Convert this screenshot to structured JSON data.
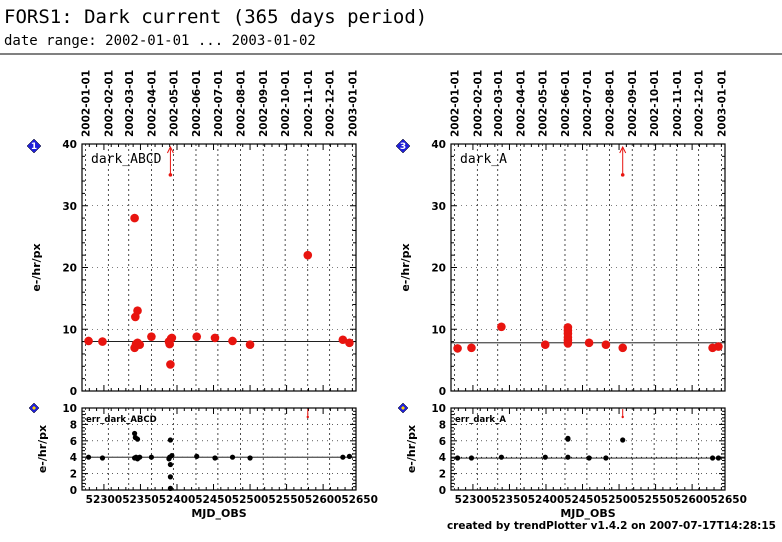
{
  "header": {
    "title": "FORS1: Dark current (365 days period)",
    "subtitle": "date range: 2002-01-01 ... 2003-01-02"
  },
  "footer": "created by trendPlotter v1.4.2 on 2007-07-17T14:28:15",
  "colors": {
    "points_main": "#e8140f",
    "points_err": "#000000",
    "badge": "#1f1fd8",
    "grid": "#000000"
  },
  "chart_data": [
    {
      "type": "scatter",
      "badge": "1",
      "name": "dark_ABCD",
      "ylabel": "e-/hr/px",
      "ylim": [
        0,
        40
      ],
      "yticks": [
        "0",
        "10",
        "20",
        "30",
        "40"
      ],
      "xlim": [
        52270,
        52645
      ],
      "reference_line": 8,
      "date_ticks": [
        {
          "label": "2002-01-01",
          "mjd": 52275
        },
        {
          "label": "2002-02-01",
          "mjd": 52306
        },
        {
          "label": "2002-03-01",
          "mjd": 52334
        },
        {
          "label": "2002-04-01",
          "mjd": 52365
        },
        {
          "label": "2002-05-01",
          "mjd": 52395
        },
        {
          "label": "2002-06-01",
          "mjd": 52426
        },
        {
          "label": "2002-07-01",
          "mjd": 52456
        },
        {
          "label": "2002-08-01",
          "mjd": 52487
        },
        {
          "label": "2002-09-01",
          "mjd": 52518
        },
        {
          "label": "2002-10-01",
          "mjd": 52548
        },
        {
          "label": "2002-11-01",
          "mjd": 52579
        },
        {
          "label": "2002-12-01",
          "mjd": 52609
        },
        {
          "label": "2003-01-01",
          "mjd": 52640
        }
      ],
      "outlier_arrows": [
        {
          "x": 52391,
          "y": 35
        }
      ],
      "points": [
        {
          "x": 52279,
          "y": 8.1
        },
        {
          "x": 52298,
          "y": 8.0
        },
        {
          "x": 52342,
          "y": 28.0
        },
        {
          "x": 52343,
          "y": 12.0
        },
        {
          "x": 52346,
          "y": 13.0
        },
        {
          "x": 52342,
          "y": 7.0
        },
        {
          "x": 52344,
          "y": 7.6
        },
        {
          "x": 52346,
          "y": 7.8
        },
        {
          "x": 52349,
          "y": 7.5
        },
        {
          "x": 52365,
          "y": 8.8
        },
        {
          "x": 52389,
          "y": 8.0
        },
        {
          "x": 52390,
          "y": 7.6
        },
        {
          "x": 52391,
          "y": 4.3
        },
        {
          "x": 52392,
          "y": 8.5
        },
        {
          "x": 52393,
          "y": 8.6
        },
        {
          "x": 52427,
          "y": 8.8
        },
        {
          "x": 52452,
          "y": 8.6
        },
        {
          "x": 52476,
          "y": 8.1
        },
        {
          "x": 52500,
          "y": 7.5
        },
        {
          "x": 52579,
          "y": 22.0
        },
        {
          "x": 52627,
          "y": 8.3
        },
        {
          "x": 52636,
          "y": 7.8
        }
      ]
    },
    {
      "type": "scatter",
      "badge": "",
      "name": "err_dark_ABCD",
      "ylabel": "e-/hr/px",
      "xlabel": "MJD_OBS",
      "ylim": [
        0,
        10
      ],
      "yticks": [
        "0",
        "2",
        "4",
        "6",
        "8",
        "10"
      ],
      "xlim": [
        52270,
        52645
      ],
      "xticks": [
        "52300",
        "52350",
        "52400",
        "52450",
        "52500",
        "52550",
        "52600",
        "52650"
      ],
      "reference_line": 4,
      "outlier_arrows": [
        {
          "x": 52579,
          "y": 9
        }
      ],
      "points": [
        {
          "x": 52279,
          "y": 4.0
        },
        {
          "x": 52298,
          "y": 3.9
        },
        {
          "x": 52342,
          "y": 6.9
        },
        {
          "x": 52343,
          "y": 6.4
        },
        {
          "x": 52346,
          "y": 6.2
        },
        {
          "x": 52342,
          "y": 3.9
        },
        {
          "x": 52344,
          "y": 4.0
        },
        {
          "x": 52346,
          "y": 3.8
        },
        {
          "x": 52349,
          "y": 4.0
        },
        {
          "x": 52365,
          "y": 4.0
        },
        {
          "x": 52389,
          "y": 3.8
        },
        {
          "x": 52390,
          "y": 4.0
        },
        {
          "x": 52391,
          "y": 6.1
        },
        {
          "x": 52391,
          "y": 3.1
        },
        {
          "x": 52391,
          "y": 1.6
        },
        {
          "x": 52391,
          "y": 0.2
        },
        {
          "x": 52393,
          "y": 4.2
        },
        {
          "x": 52427,
          "y": 4.1
        },
        {
          "x": 52452,
          "y": 3.9
        },
        {
          "x": 52476,
          "y": 4.0
        },
        {
          "x": 52500,
          "y": 3.9
        },
        {
          "x": 52627,
          "y": 4.0
        },
        {
          "x": 52636,
          "y": 4.1
        }
      ]
    },
    {
      "type": "scatter",
      "badge": "3",
      "name": "dark_A",
      "ylabel": "e-/hr/px",
      "ylim": [
        0,
        40
      ],
      "yticks": [
        "0",
        "10",
        "20",
        "30",
        "40"
      ],
      "xlim": [
        52270,
        52645
      ],
      "reference_line": 7.8,
      "date_ticks": [
        {
          "label": "2002-01-01",
          "mjd": 52275
        },
        {
          "label": "2002-02-01",
          "mjd": 52306
        },
        {
          "label": "2002-03-01",
          "mjd": 52334
        },
        {
          "label": "2002-04-01",
          "mjd": 52365
        },
        {
          "label": "2002-05-01",
          "mjd": 52395
        },
        {
          "label": "2002-06-01",
          "mjd": 52426
        },
        {
          "label": "2002-07-01",
          "mjd": 52456
        },
        {
          "label": "2002-08-01",
          "mjd": 52487
        },
        {
          "label": "2002-09-01",
          "mjd": 52518
        },
        {
          "label": "2002-10-01",
          "mjd": 52548
        },
        {
          "label": "2002-11-01",
          "mjd": 52579
        },
        {
          "label": "2002-12-01",
          "mjd": 52609
        },
        {
          "label": "2003-01-01",
          "mjd": 52640
        }
      ],
      "outlier_arrows": [
        {
          "x": 52505,
          "y": 35
        }
      ],
      "points": [
        {
          "x": 52279,
          "y": 6.9
        },
        {
          "x": 52298,
          "y": 7.0
        },
        {
          "x": 52339,
          "y": 10.4
        },
        {
          "x": 52399,
          "y": 7.5
        },
        {
          "x": 52430,
          "y": 10.3
        },
        {
          "x": 52430,
          "y": 9.8
        },
        {
          "x": 52430,
          "y": 9.3
        },
        {
          "x": 52430,
          "y": 8.7
        },
        {
          "x": 52430,
          "y": 8.2
        },
        {
          "x": 52430,
          "y": 7.7
        },
        {
          "x": 52459,
          "y": 7.8
        },
        {
          "x": 52482,
          "y": 7.5
        },
        {
          "x": 52505,
          "y": 7.0
        },
        {
          "x": 52628,
          "y": 7.0
        },
        {
          "x": 52636,
          "y": 7.2
        }
      ]
    },
    {
      "type": "scatter",
      "badge": "",
      "name": "err_dark_A",
      "ylabel": "e-/hr/px",
      "xlabel": "MJD_OBS",
      "ylim": [
        0,
        10
      ],
      "yticks": [
        "0",
        "2",
        "4",
        "6",
        "8",
        "10"
      ],
      "xlim": [
        52270,
        52645
      ],
      "xticks": [
        "52300",
        "52350",
        "52400",
        "52450",
        "52500",
        "52550",
        "52600",
        "52650"
      ],
      "reference_line": 3.9,
      "outlier_arrows": [
        {
          "x": 52505,
          "y": 9
        }
      ],
      "points": [
        {
          "x": 52279,
          "y": 3.9
        },
        {
          "x": 52298,
          "y": 3.9
        },
        {
          "x": 52339,
          "y": 4.0
        },
        {
          "x": 52399,
          "y": 4.0
        },
        {
          "x": 52430,
          "y": 6.3
        },
        {
          "x": 52430,
          "y": 6.2
        },
        {
          "x": 52430,
          "y": 4.0
        },
        {
          "x": 52459,
          "y": 3.9
        },
        {
          "x": 52482,
          "y": 3.9
        },
        {
          "x": 52505,
          "y": 6.1
        },
        {
          "x": 52628,
          "y": 3.9
        },
        {
          "x": 52636,
          "y": 3.9
        }
      ]
    }
  ]
}
